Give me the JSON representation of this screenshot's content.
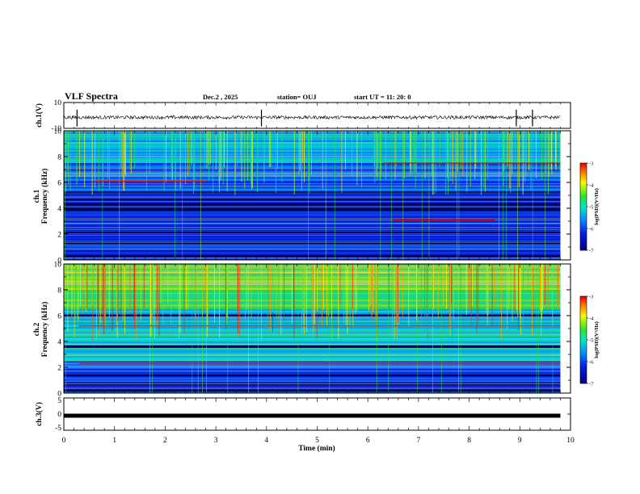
{
  "header": {
    "title": "VLF Spectra",
    "date": "Dec.2 , 2025",
    "station": "station= OUJ",
    "start_ut": "start UT =  11: 20: 0"
  },
  "chart_data": [
    {
      "id": "ch1-voltage",
      "type": "line",
      "ylabel": "ch.1(V)",
      "ylim": [
        -10,
        10
      ],
      "yticks": [
        "10",
        "-10"
      ],
      "baseline": -1.5,
      "spikes_x_min": [
        0.26,
        3.9,
        8.93,
        9.25
      ]
    },
    {
      "id": "ch1-spectrogram",
      "type": "heatmap",
      "ylabel": "ch.1\nFrequency (kHz)",
      "ylim": [
        0,
        10
      ],
      "yticks": [
        "0",
        "2",
        "4",
        "6",
        "8",
        "10"
      ],
      "colorbar": {
        "label": "log(PSD)(V²/Hz)",
        "range": [
          -7,
          -3
        ],
        "ticks": [
          "-3",
          "-4",
          "-5",
          "-6",
          "-7"
        ]
      },
      "dark_bands_khz": [
        0.3,
        1.3,
        2.1,
        3.9,
        4.3,
        4.7,
        5.2
      ],
      "red_lines": [
        {
          "f": 6.1,
          "x0": 0.6,
          "x1": 2.8
        },
        {
          "f": 7.5,
          "x0": 6.3,
          "x1": 9.8
        },
        {
          "f": 3.1,
          "x0": 6.5,
          "x1": 8.5
        }
      ]
    },
    {
      "id": "ch2-spectrogram",
      "type": "heatmap",
      "ylabel": "ch.2\nFrequency (kHz)",
      "ylim": [
        0,
        10
      ],
      "yticks": [
        "0",
        "2",
        "4",
        "6",
        "8",
        "10"
      ],
      "colorbar": {
        "label": "log(PSD)(V²/Hz)",
        "range": [
          -7,
          -3
        ],
        "ticks": [
          "-3",
          "-4",
          "-5",
          "-6",
          "-7"
        ]
      },
      "dark_bands_khz": [
        0.2,
        0.7,
        1.4,
        3.6,
        6.0
      ],
      "red_lines": [
        {
          "f": 5.2,
          "x0": 0.3,
          "x1": 9.8
        },
        {
          "f": 2.3,
          "x0": 0.3,
          "x1": 9.8
        }
      ]
    },
    {
      "id": "ch3-voltage",
      "type": "line",
      "ylabel": "ch.3(V)",
      "ylim": [
        -5,
        5
      ],
      "yticks": [
        "5",
        "0",
        "-5"
      ],
      "baseline": -0.5
    }
  ],
  "xaxis": {
    "label": "Time (min)",
    "range": [
      0,
      10
    ],
    "ticks": [
      "0",
      "1",
      "2",
      "3",
      "4",
      "5",
      "6",
      "7",
      "8",
      "9",
      "10"
    ]
  }
}
